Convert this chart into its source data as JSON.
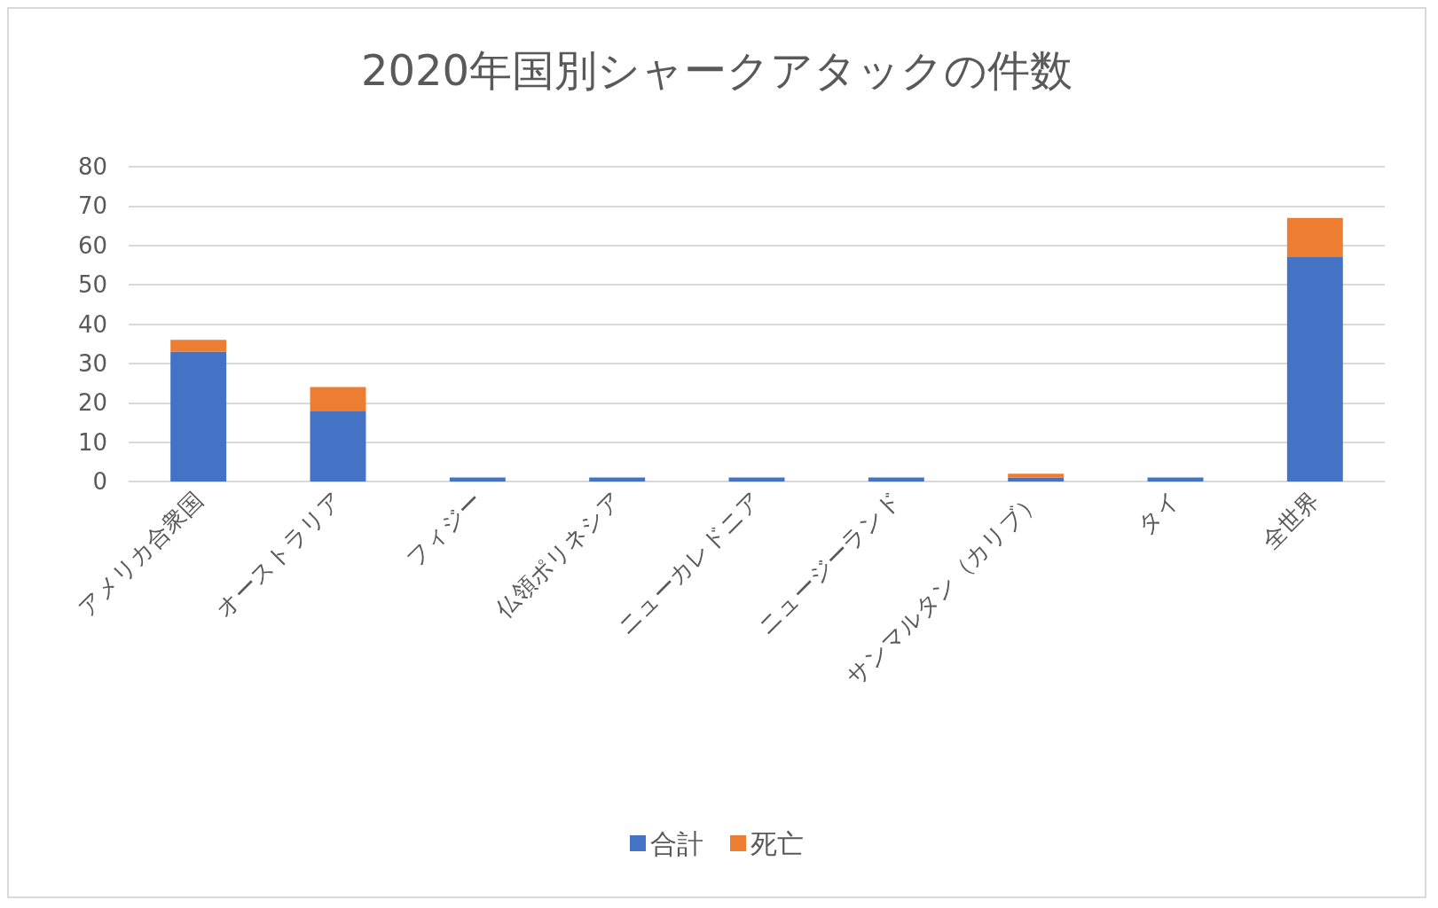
{
  "chart_data": {
    "type": "bar",
    "title": "2020年国別シャークアタックの件数",
    "categories": [
      "アメリカ合衆国",
      "オーストラリア",
      "フィジー",
      "仏領ポリネシア",
      "ニューカレドニア",
      "ニュージーランド",
      "サンマルタン（カリブ）",
      "タイ",
      "全世界"
    ],
    "series": [
      {
        "name": "合計",
        "color": "#4472c4",
        "values": [
          33,
          18,
          1,
          1,
          1,
          1,
          1,
          1,
          57
        ]
      },
      {
        "name": "死亡",
        "color": "#ed7d31",
        "values": [
          3,
          6,
          0,
          0,
          0,
          0,
          1,
          0,
          10
        ]
      }
    ],
    "stacked": true,
    "ylim": [
      0,
      80
    ],
    "yticks": [
      0,
      10,
      20,
      30,
      40,
      50,
      60,
      70,
      80
    ],
    "grid": "y",
    "legend": "bottom"
  }
}
